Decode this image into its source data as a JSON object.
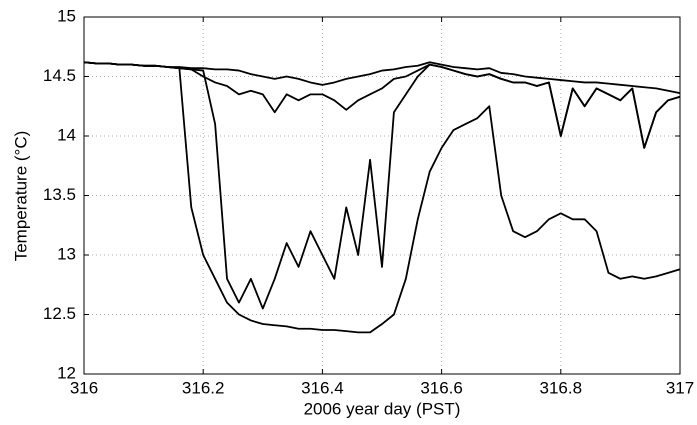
{
  "chart_data": {
    "type": "line",
    "x_label": "2006 year day (PST)",
    "y_label": "Temperature (°C)",
    "x": [
      316,
      316.02,
      316.04,
      316.06,
      316.08,
      316.1,
      316.12,
      316.14,
      316.16,
      316.18,
      316.2,
      316.22,
      316.24,
      316.26,
      316.28,
      316.3,
      316.32,
      316.34,
      316.36,
      316.38,
      316.4,
      316.42,
      316.44,
      316.46,
      316.48,
      316.5,
      316.52,
      316.54,
      316.56,
      316.58,
      316.6,
      316.62,
      316.64,
      316.66,
      316.68,
      316.7,
      316.72,
      316.74,
      316.76,
      316.78,
      316.8,
      316.82,
      316.84,
      316.86,
      316.88,
      316.9,
      316.92,
      316.94,
      316.96,
      316.98,
      317
    ],
    "series": [
      {
        "color": "#000000",
        "values": [
          14.62,
          14.61,
          14.61,
          14.6,
          14.6,
          14.59,
          14.59,
          14.58,
          14.58,
          14.57,
          14.57,
          14.56,
          14.56,
          14.55,
          14.52,
          14.5,
          14.48,
          14.5,
          14.48,
          14.45,
          14.43,
          14.45,
          14.48,
          14.5,
          14.52,
          14.55,
          14.56,
          14.58,
          14.59,
          14.62,
          14.6,
          14.58,
          14.57,
          14.56,
          14.57,
          14.53,
          14.52,
          14.5,
          14.49,
          14.48,
          14.47,
          14.46,
          14.45,
          14.45,
          14.44,
          14.43,
          14.42,
          14.41,
          14.4,
          14.38,
          14.36
        ]
      },
      {
        "color": "#000000",
        "values": [
          14.62,
          14.61,
          14.61,
          14.6,
          14.6,
          14.59,
          14.59,
          14.58,
          14.57,
          14.56,
          14.5,
          14.45,
          14.42,
          14.35,
          14.38,
          14.35,
          14.2,
          14.35,
          14.3,
          14.35,
          14.35,
          14.3,
          14.22,
          14.3,
          14.35,
          14.4,
          14.48,
          14.5,
          14.55,
          14.6,
          14.58,
          14.55,
          14.52,
          14.5,
          14.52,
          14.48,
          14.45,
          14.45,
          14.42,
          14.45,
          14.0,
          14.4,
          14.25,
          14.4,
          14.35,
          14.3,
          14.4,
          13.9,
          14.2,
          14.3,
          14.33
        ]
      },
      {
        "color": "#000000",
        "values": [
          14.62,
          14.61,
          14.61,
          14.6,
          14.6,
          14.59,
          14.59,
          14.58,
          14.57,
          14.56,
          14.55,
          14.1,
          12.8,
          12.6,
          12.8,
          12.55,
          12.8,
          13.1,
          12.9,
          13.2,
          13.0,
          12.8,
          13.4,
          13.0,
          13.8,
          12.9,
          14.2,
          14.35,
          14.5,
          14.6,
          14.58,
          14.55,
          14.52,
          14.5,
          14.52,
          14.48,
          14.45,
          14.45,
          14.42,
          14.45,
          14.0,
          14.4,
          14.25,
          14.4,
          14.35,
          14.3,
          14.4,
          13.9,
          14.2,
          14.3,
          14.33
        ]
      },
      {
        "color": "#000000",
        "values": [
          14.62,
          14.61,
          14.61,
          14.6,
          14.6,
          14.59,
          14.59,
          14.58,
          14.57,
          13.4,
          13.0,
          12.8,
          12.6,
          12.5,
          12.45,
          12.42,
          12.41,
          12.4,
          12.38,
          12.38,
          12.37,
          12.37,
          12.36,
          12.35,
          12.35,
          12.42,
          12.5,
          12.8,
          13.3,
          13.7,
          13.9,
          14.05,
          14.1,
          14.15,
          14.25,
          13.5,
          13.2,
          13.15,
          13.2,
          13.3,
          13.35,
          13.3,
          13.3,
          13.2,
          12.85,
          12.8,
          12.82,
          12.8,
          12.82,
          12.85,
          12.88
        ]
      }
    ],
    "xlim": [
      316,
      317
    ],
    "xticks": [
      316,
      316.2,
      316.4,
      316.6,
      316.8,
      317
    ],
    "ylim": [
      12,
      15
    ],
    "yticks": [
      12,
      12.5,
      13,
      13.5,
      14,
      14.5,
      15
    ],
    "grid": true
  }
}
